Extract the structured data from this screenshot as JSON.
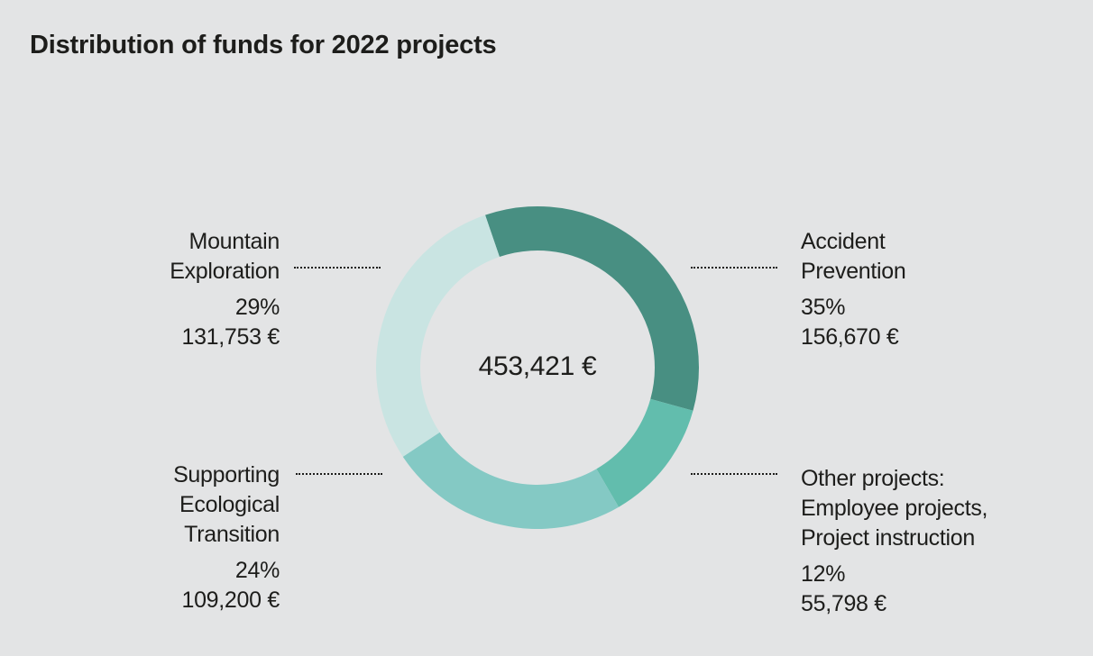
{
  "title": "Distribution of funds for 2022 projects",
  "chart_data": {
    "type": "pie",
    "title": "Distribution of funds for 2022 projects",
    "total_label": "453,421 €",
    "donut": true,
    "slices": [
      {
        "name_lines": [
          "Accident",
          "Prevention"
        ],
        "percent_label": "35%",
        "amount_label": "156,670 €",
        "value": 156670,
        "color": "#488f82"
      },
      {
        "name_lines": [
          "Other projects:",
          "Employee projects,",
          "Project instruction"
        ],
        "percent_label": "12%",
        "amount_label": "55,798 €",
        "value": 55798,
        "color": "#62bdad"
      },
      {
        "name_lines": [
          "Supporting",
          "Ecological",
          "Transition"
        ],
        "percent_label": "24%",
        "amount_label": "109,200 €",
        "value": 109200,
        "color": "#84c9c4"
      },
      {
        "name_lines": [
          "Mountain",
          "Exploration"
        ],
        "percent_label": "29%",
        "amount_label": "131,753 €",
        "value": 131753,
        "color": "#c9e4e2"
      }
    ]
  }
}
